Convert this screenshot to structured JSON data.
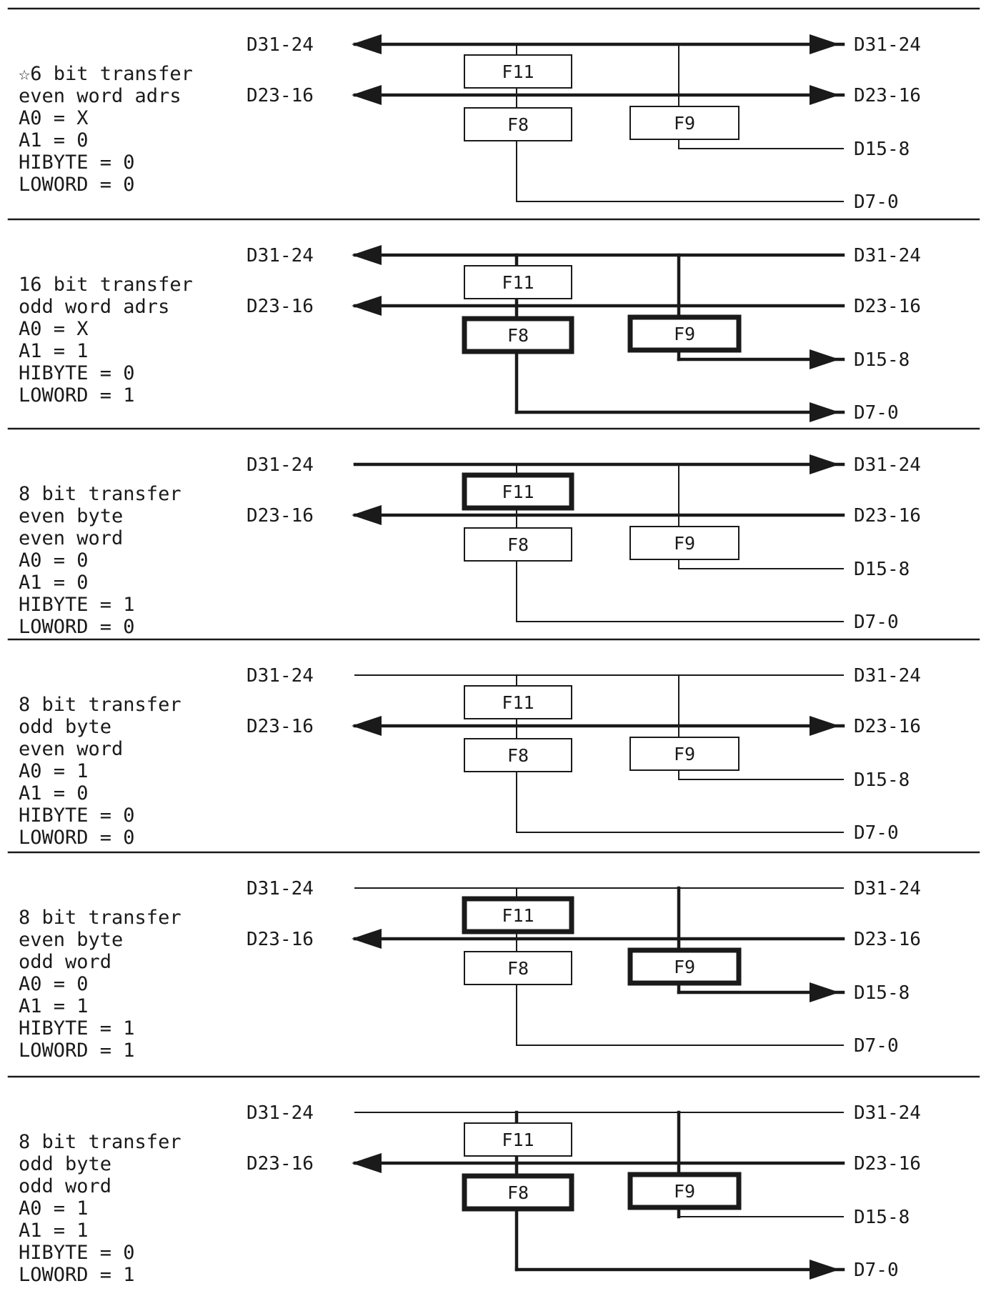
{
  "bus_labels": {
    "d31": "D31-24",
    "d23": "D23-16",
    "d15": "D15-8",
    "d7": "D7-0"
  },
  "boxes": {
    "f11": "F11",
    "f8": "F8",
    "f9": "F9"
  },
  "panels": [
    {
      "description": [
        "☆6 bit transfer",
        "even word adrs",
        "A0 = X",
        "A1 = 0",
        "HIBYTE = 0",
        "LOWORD = 0"
      ],
      "active_boxes": [],
      "arrows": {
        "d31_left": true,
        "d31_right": true,
        "d23_left": true,
        "d23_right": true,
        "d15_right": false,
        "d7_right": false
      }
    },
    {
      "description": [
        "16 bit transfer",
        "odd word adrs",
        "A0 = X",
        "A1 = 1",
        "HIBYTE = 0",
        "LOWORD = 1"
      ],
      "active_boxes": [
        "f8",
        "f9"
      ],
      "arrows": {
        "d31_left": true,
        "d31_right": false,
        "d23_left": true,
        "d23_right": false,
        "d15_right": true,
        "d7_right": true
      }
    },
    {
      "description": [
        "8 bit transfer",
        "even byte",
        "even word",
        "A0 = 0",
        "A1 = 0",
        "HIBYTE = 1",
        "LOWORD = 0"
      ],
      "active_boxes": [
        "f11"
      ],
      "arrows": {
        "d31_left": false,
        "d31_right": true,
        "d23_left": true,
        "d23_right": false,
        "d15_right": false,
        "d7_right": false
      }
    },
    {
      "description": [
        "8 bit transfer",
        "odd byte",
        "even word",
        "A0 = 1",
        "A1 = 0",
        "HIBYTE = 0",
        "LOWORD = 0"
      ],
      "active_boxes": [],
      "arrows": {
        "d31_left": false,
        "d31_right": false,
        "d23_left": true,
        "d23_right": true,
        "d15_right": false,
        "d7_right": false
      }
    },
    {
      "description": [
        "8 bit transfer",
        "even byte",
        "odd word",
        "A0 = 0",
        "A1 = 1",
        "HIBYTE = 1",
        "LOWORD = 1"
      ],
      "active_boxes": [
        "f11",
        "f9"
      ],
      "arrows": {
        "d31_left": false,
        "d31_right": false,
        "d23_left": true,
        "d23_right": false,
        "d15_right": true,
        "d7_right": false
      }
    },
    {
      "description": [
        "8 bit transfer",
        "odd byte",
        "odd word",
        "A0 = 1",
        "A1 = 1",
        "HIBYTE = 0",
        "LOWORD = 1"
      ],
      "active_boxes": [
        "f8",
        "f9"
      ],
      "arrows": {
        "d31_left": false,
        "d31_right": false,
        "d23_left": true,
        "d23_right": false,
        "d15_right": false,
        "d7_right": true
      }
    }
  ]
}
